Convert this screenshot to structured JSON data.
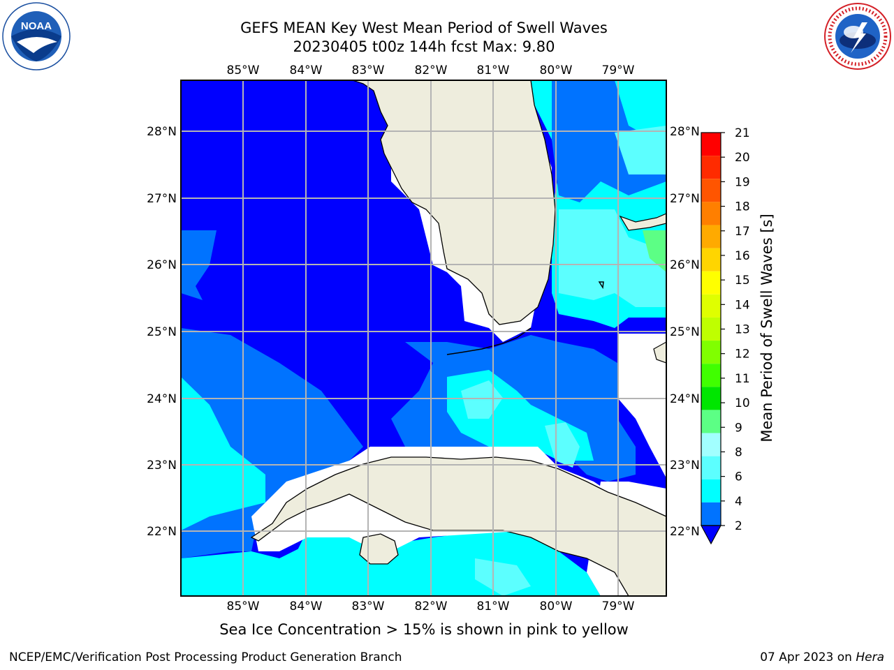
{
  "header": {
    "title_line1": "GEFS MEAN Key West Mean Period of Swell Waves",
    "title_line2": "20230405 t00z 144h fcst   Max: 9.80"
  },
  "logos": {
    "left": {
      "icon": "noaa-logo",
      "text": "NOAA"
    },
    "right": {
      "icon": "nws-logo",
      "text": "NATIONAL WEATHER SERVICE"
    }
  },
  "map": {
    "lon_labels": [
      "85°W",
      "84°W",
      "83°W",
      "82°W",
      "81°W",
      "80°W",
      "79°W"
    ],
    "lat_labels": [
      "28°N",
      "27°N",
      "26°N",
      "25°N",
      "24°N",
      "23°N",
      "22°N"
    ],
    "colors": {
      "ocean_low": "#0000ff",
      "ocean_mid": "#0073ff",
      "ocean_cyan": "#00ffff",
      "ocean_light": "#5cffff",
      "land": "#eeeddd",
      "grid": "#b4b4b4"
    }
  },
  "colorbar": {
    "title": "Mean Period of Swell Waves [s]",
    "ticks": [
      "21",
      "20",
      "19",
      "18",
      "17",
      "16",
      "15",
      "14",
      "13",
      "12",
      "11",
      "10",
      "9",
      "8",
      "6",
      "4",
      "2"
    ],
    "colors": [
      "#ff0000",
      "#ff2b00",
      "#ff5500",
      "#ff7f00",
      "#ffaa00",
      "#ffd500",
      "#ffff00",
      "#dfff00",
      "#bfff00",
      "#80ff00",
      "#40ff00",
      "#00e600",
      "#5cff85",
      "#a2ffff",
      "#5cffff",
      "#00ffff",
      "#0073ff"
    ],
    "extend_color": "#0000ff"
  },
  "footnote": "Sea Ice Concentration > 15% is shown in pink to yellow",
  "footer": {
    "left": "NCEP/EMC/Verification Post Processing Product Generation Branch",
    "right_date": "07 Apr 2023 on",
    "right_host": "Hera"
  }
}
